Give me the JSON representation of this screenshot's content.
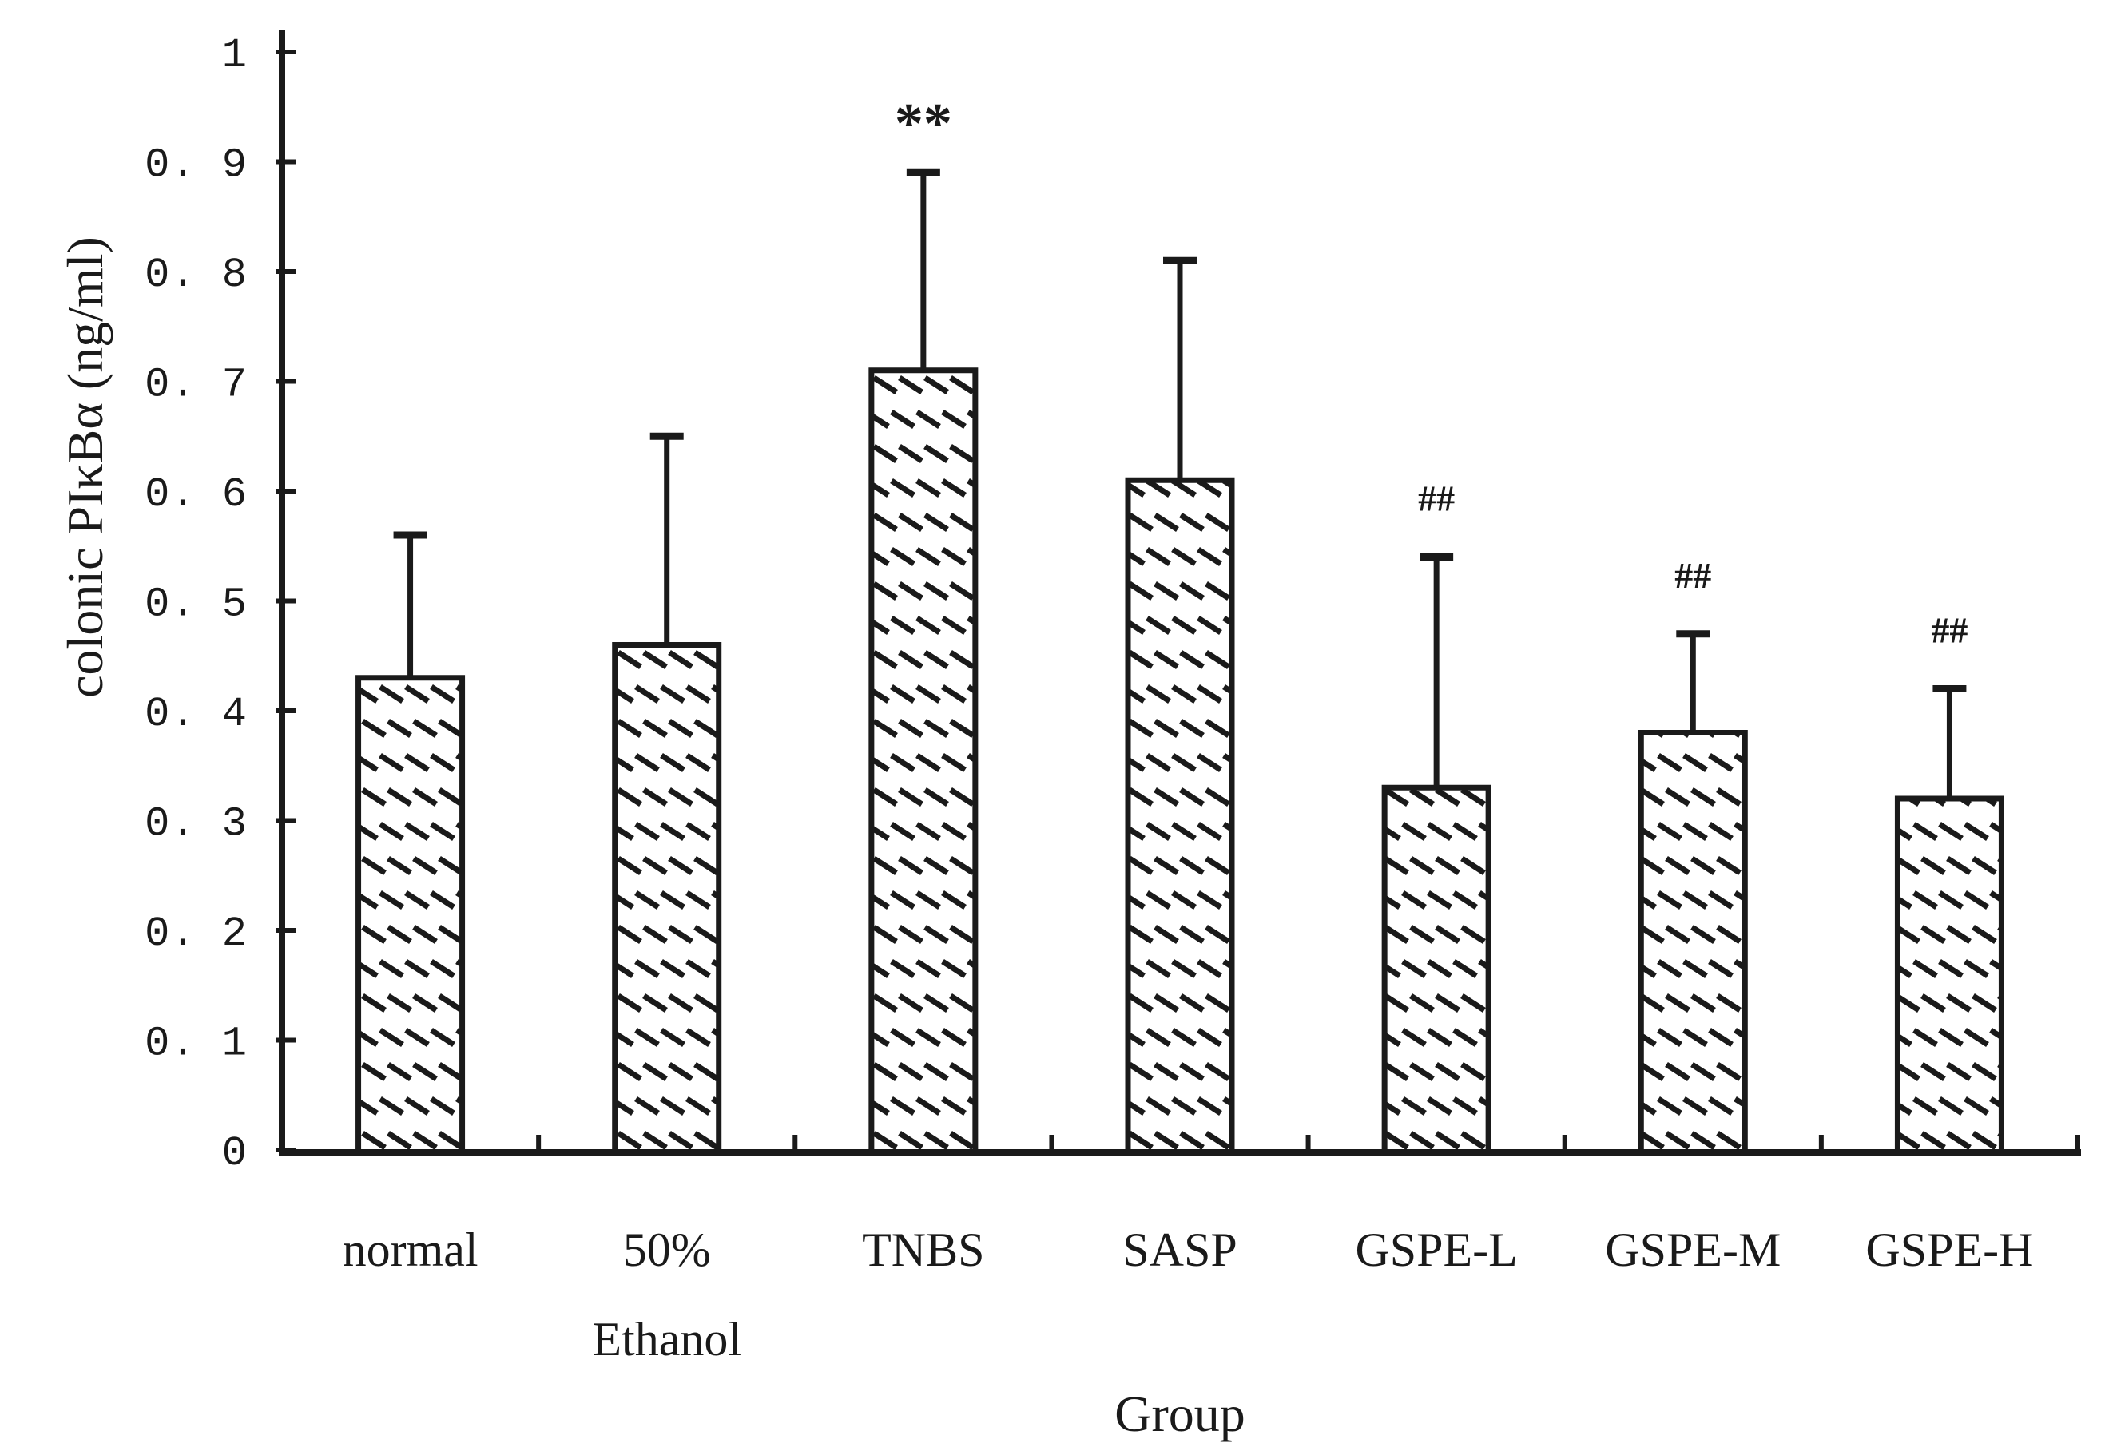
{
  "chart_data": {
    "type": "bar",
    "title": "",
    "categories": [
      "normal",
      "50% Ethanol",
      "TNBS",
      "SASP",
      "GSPE-L",
      "GSPE-M",
      "GSPE-H"
    ],
    "category_label_lines": [
      [
        "normal"
      ],
      [
        "50%",
        "Ethanol"
      ],
      [
        "TNBS"
      ],
      [
        "SASP"
      ],
      [
        "GSPE-L"
      ],
      [
        "GSPE-M"
      ],
      [
        "GSPE-H"
      ]
    ],
    "values": [
      0.43,
      0.46,
      0.71,
      0.61,
      0.33,
      0.38,
      0.32
    ],
    "error_upper": [
      0.13,
      0.19,
      0.18,
      0.2,
      0.21,
      0.09,
      0.1
    ],
    "annotations": [
      "",
      "",
      "**",
      "",
      "##",
      "##",
      "##"
    ],
    "xlabel": "Group",
    "ylabel": "colonic PIκBα (ng/ml)",
    "ylim": [
      0,
      1
    ],
    "ytick_values": [
      0,
      0.1,
      0.2,
      0.3,
      0.4,
      0.5,
      0.6,
      0.7,
      0.8,
      0.9,
      1
    ],
    "ytick_labels": [
      "0",
      "0. 1",
      "0. 2",
      "0. 3",
      "0. 4",
      "0. 5",
      "0. 6",
      "0. 7",
      "0. 8",
      "0. 9",
      "1"
    ],
    "grid": "off",
    "legend": "none",
    "bar_fill_style": "diagonal-dash-hatch",
    "error_bar_direction": "upper-only",
    "colors": {
      "ink": "#1a1a1a",
      "background": "#ffffff"
    }
  }
}
